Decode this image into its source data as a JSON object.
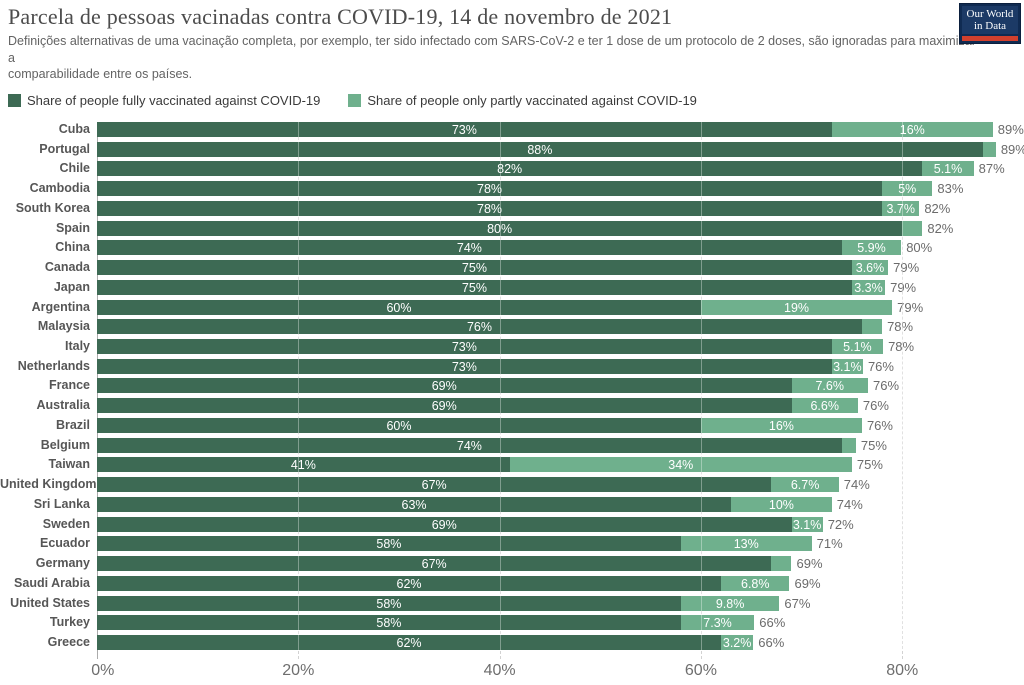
{
  "header": {
    "title": "Parcela de pessoas vacinadas contra COVID-19, 14 de novembro de 2021",
    "subtitle_lines": [
      "Definições alternativas de uma vacinação completa, por exemplo, ter sido infectado com SARS-CoV-2 e ter 1 dose de um protocolo de 2 doses, são ignoradas para maximizar",
      "a",
      "comparabilidade entre os países."
    ],
    "logo": {
      "line1": "Our World",
      "line2": "in Data"
    }
  },
  "legend": [
    {
      "label": "Share of people fully vaccinated against COVID-19",
      "color": "#3d6a54"
    },
    {
      "label": "Share of people only partly vaccinated against COVID-19",
      "color": "#6fb08d"
    }
  ],
  "chart_data": {
    "type": "bar",
    "stacked": true,
    "orientation": "horizontal",
    "title": "Parcela de pessoas vacinadas contra COVID-19, 14 de novembro de 2021",
    "series_names": [
      "Share of people fully vaccinated against COVID-19",
      "Share of people only partly vaccinated against COVID-19"
    ],
    "colors": {
      "full": "#3d6a54",
      "partly": "#6fb08d"
    },
    "x_max": 92,
    "grid": true,
    "ticks": [
      {
        "label": "0%",
        "value": 0
      },
      {
        "label": "20%",
        "value": 20
      },
      {
        "label": "40%",
        "value": 40
      },
      {
        "label": "60%",
        "value": 60
      },
      {
        "label": "80%",
        "value": 80
      }
    ],
    "rows": [
      {
        "country": "Cuba",
        "full": 73,
        "full_label": "73%",
        "partly": 16,
        "partly_label": "16%",
        "total_label": "89%"
      },
      {
        "country": "Portugal",
        "full": 88,
        "full_label": "88%",
        "partly": 1.3,
        "partly_label": "",
        "total_label": "89%"
      },
      {
        "country": "Chile",
        "full": 82,
        "full_label": "82%",
        "partly": 5.1,
        "partly_label": "5.1%",
        "total_label": "87%"
      },
      {
        "country": "Cambodia",
        "full": 78,
        "full_label": "78%",
        "partly": 5,
        "partly_label": "5%",
        "total_label": "83%"
      },
      {
        "country": "South Korea",
        "full": 78,
        "full_label": "78%",
        "partly": 3.7,
        "partly_label": "3.7%",
        "total_label": "82%"
      },
      {
        "country": "Spain",
        "full": 80,
        "full_label": "80%",
        "partly": 2,
        "partly_label": "",
        "total_label": "82%"
      },
      {
        "country": "China",
        "full": 74,
        "full_label": "74%",
        "partly": 5.9,
        "partly_label": "5.9%",
        "total_label": "80%"
      },
      {
        "country": "Canada",
        "full": 75,
        "full_label": "75%",
        "partly": 3.6,
        "partly_label": "3.6%",
        "total_label": "79%"
      },
      {
        "country": "Japan",
        "full": 75,
        "full_label": "75%",
        "partly": 3.3,
        "partly_label": "3.3%",
        "total_label": "79%"
      },
      {
        "country": "Argentina",
        "full": 60,
        "full_label": "60%",
        "partly": 19,
        "partly_label": "19%",
        "total_label": "79%"
      },
      {
        "country": "Malaysia",
        "full": 76,
        "full_label": "76%",
        "partly": 2,
        "partly_label": "",
        "total_label": "78%"
      },
      {
        "country": "Italy",
        "full": 73,
        "full_label": "73%",
        "partly": 5.1,
        "partly_label": "5.1%",
        "total_label": "78%"
      },
      {
        "country": "Netherlands",
        "full": 73,
        "full_label": "73%",
        "partly": 3.1,
        "partly_label": "3.1%",
        "total_label": "76%"
      },
      {
        "country": "France",
        "full": 69,
        "full_label": "69%",
        "partly": 7.6,
        "partly_label": "7.6%",
        "total_label": "76%"
      },
      {
        "country": "Australia",
        "full": 69,
        "full_label": "69%",
        "partly": 6.6,
        "partly_label": "6.6%",
        "total_label": "76%"
      },
      {
        "country": "Brazil",
        "full": 60,
        "full_label": "60%",
        "partly": 16,
        "partly_label": "16%",
        "total_label": "76%"
      },
      {
        "country": "Belgium",
        "full": 74,
        "full_label": "74%",
        "partly": 1.4,
        "partly_label": "",
        "total_label": "75%"
      },
      {
        "country": "Taiwan",
        "full": 41,
        "full_label": "41%",
        "partly": 34,
        "partly_label": "34%",
        "total_label": "75%"
      },
      {
        "country": "United Kingdom",
        "full": 67,
        "full_label": "67%",
        "partly": 6.7,
        "partly_label": "6.7%",
        "total_label": "74%"
      },
      {
        "country": "Sri Lanka",
        "full": 63,
        "full_label": "63%",
        "partly": 10,
        "partly_label": "10%",
        "total_label": "74%"
      },
      {
        "country": "Sweden",
        "full": 69,
        "full_label": "69%",
        "partly": 3.1,
        "partly_label": "3.1%",
        "total_label": "72%"
      },
      {
        "country": "Ecuador",
        "full": 58,
        "full_label": "58%",
        "partly": 13,
        "partly_label": "13%",
        "total_label": "71%"
      },
      {
        "country": "Germany",
        "full": 67,
        "full_label": "67%",
        "partly": 2,
        "partly_label": "",
        "total_label": "69%"
      },
      {
        "country": "Saudi Arabia",
        "full": 62,
        "full_label": "62%",
        "partly": 6.8,
        "partly_label": "6.8%",
        "total_label": "69%"
      },
      {
        "country": "United States",
        "full": 58,
        "full_label": "58%",
        "partly": 9.8,
        "partly_label": "9.8%",
        "total_label": "67%"
      },
      {
        "country": "Turkey",
        "full": 58,
        "full_label": "58%",
        "partly": 7.3,
        "partly_label": "7.3%",
        "total_label": "66%"
      },
      {
        "country": "Greece",
        "full": 62,
        "full_label": "62%",
        "partly": 3.2,
        "partly_label": "3.2%",
        "total_label": "66%"
      }
    ]
  }
}
